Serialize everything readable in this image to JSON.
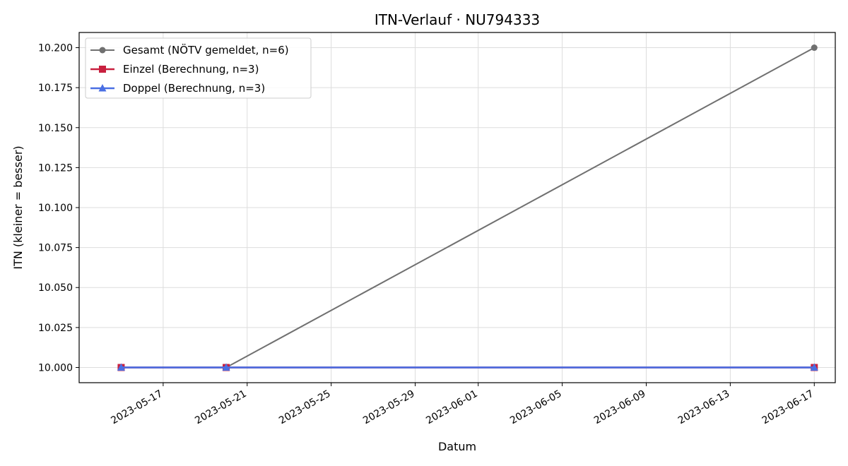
{
  "chart_data": {
    "type": "line",
    "title": "ITN-Verlauf · NU794333",
    "xlabel": "Datum",
    "ylabel": "ITN  (kleiner = besser)",
    "x_type": "date",
    "xlim": [
      "2023-05-13",
      "2023-06-18"
    ],
    "ylim": [
      9.9905,
      10.2095
    ],
    "x_ticks": [
      "2023-05-17",
      "2023-05-21",
      "2023-05-25",
      "2023-05-29",
      "2023-06-01",
      "2023-06-05",
      "2023-06-09",
      "2023-06-13",
      "2023-06-17"
    ],
    "y_ticks": [
      10.0,
      10.025,
      10.05,
      10.075,
      10.1,
      10.125,
      10.15,
      10.175,
      10.2
    ],
    "y_tick_labels": [
      "10.000",
      "10.025",
      "10.050",
      "10.075",
      "10.100",
      "10.125",
      "10.150",
      "10.175",
      "10.200"
    ],
    "grid": true,
    "legend_position": "top-left",
    "series": [
      {
        "name": "Gesamt (NÖTV gemeldet, n=6)",
        "color": "#707070",
        "marker": "circle",
        "x": [
          "2023-05-15",
          "2023-05-20",
          "2023-06-17"
        ],
        "y": [
          10.0,
          10.0,
          10.2
        ]
      },
      {
        "name": "Einzel (Berechnung, n=3)",
        "color": "#c8203f",
        "marker": "square",
        "x": [
          "2023-05-15",
          "2023-05-20",
          "2023-06-17"
        ],
        "y": [
          10.0,
          10.0,
          10.0
        ]
      },
      {
        "name": "Doppel (Berechnung, n=3)",
        "color": "#4a6fe3",
        "marker": "triangle",
        "x": [
          "2023-05-15",
          "2023-05-20",
          "2023-06-17"
        ],
        "y": [
          10.0,
          10.0,
          10.0
        ]
      }
    ]
  }
}
